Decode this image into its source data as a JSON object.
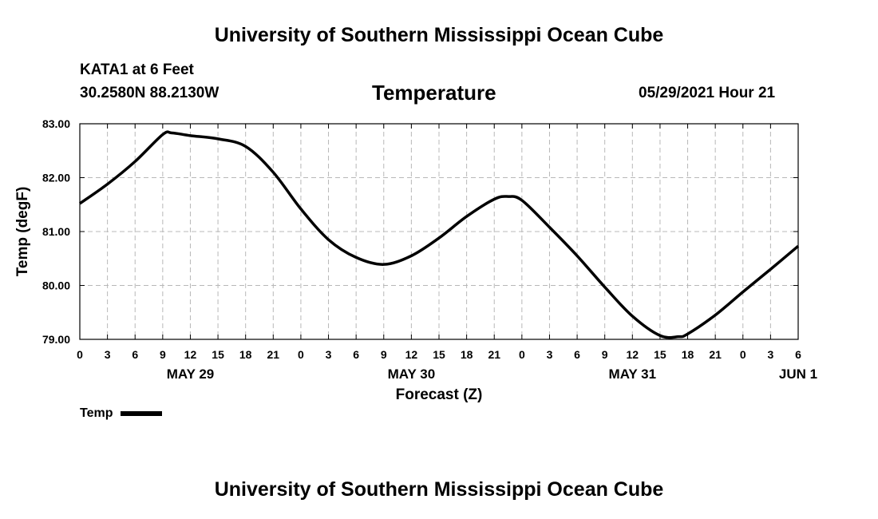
{
  "header": {
    "title": "University of Southern Mississippi Ocean Cube",
    "station": "KATA1 at 6 Feet",
    "location": "30.2580N  88.2130W",
    "chart_title": "Temperature",
    "datetime": "05/29/2021 Hour 21"
  },
  "footer": {
    "title": "University of Southern Mississippi Ocean Cube"
  },
  "legend": {
    "label": "Temp"
  },
  "chart_data": {
    "type": "line",
    "title": "Temperature",
    "xlabel": "Forecast (Z)",
    "ylabel": "Temp (degF)",
    "ylim": [
      79.0,
      83.0
    ],
    "xlim": [
      0,
      78
    ],
    "grid": true,
    "y_ticks": [
      79.0,
      80.0,
      81.0,
      82.0,
      83.0
    ],
    "y_tick_labels": [
      "79.00",
      "80.00",
      "81.00",
      "82.00",
      "83.00"
    ],
    "x_ticks": [
      0,
      3,
      6,
      9,
      12,
      15,
      18,
      21,
      24,
      27,
      30,
      33,
      36,
      39,
      42,
      45,
      48,
      51,
      54,
      57,
      60,
      63,
      66,
      69,
      72,
      75,
      78
    ],
    "x_tick_labels": [
      "0",
      "3",
      "6",
      "9",
      "12",
      "15",
      "18",
      "21",
      "0",
      "3",
      "6",
      "9",
      "12",
      "15",
      "18",
      "21",
      "0",
      "3",
      "6",
      "9",
      "12",
      "15",
      "18",
      "21",
      "0",
      "3",
      "6"
    ],
    "date_labels": [
      {
        "hour": 12,
        "label": "MAY 29"
      },
      {
        "hour": 36,
        "label": "MAY 30"
      },
      {
        "hour": 60,
        "label": "MAY 31"
      },
      {
        "hour": 78,
        "label": "JUN 1"
      }
    ],
    "series": [
      {
        "name": "Temp",
        "color": "#000000",
        "x": [
          0,
          3,
          6,
          9,
          10,
          12,
          15,
          18,
          21,
          24,
          27,
          30,
          33,
          36,
          39,
          42,
          45,
          46.5,
          48,
          51,
          54,
          57,
          60,
          63,
          65,
          66,
          69,
          72,
          75,
          78
        ],
        "values": [
          81.52,
          81.88,
          82.3,
          82.8,
          82.83,
          82.78,
          82.72,
          82.58,
          82.1,
          81.42,
          80.85,
          80.52,
          80.39,
          80.55,
          80.88,
          81.28,
          81.6,
          81.65,
          81.58,
          81.08,
          80.55,
          79.97,
          79.43,
          79.07,
          79.05,
          79.1,
          79.45,
          79.88,
          80.3,
          80.73
        ]
      }
    ]
  }
}
